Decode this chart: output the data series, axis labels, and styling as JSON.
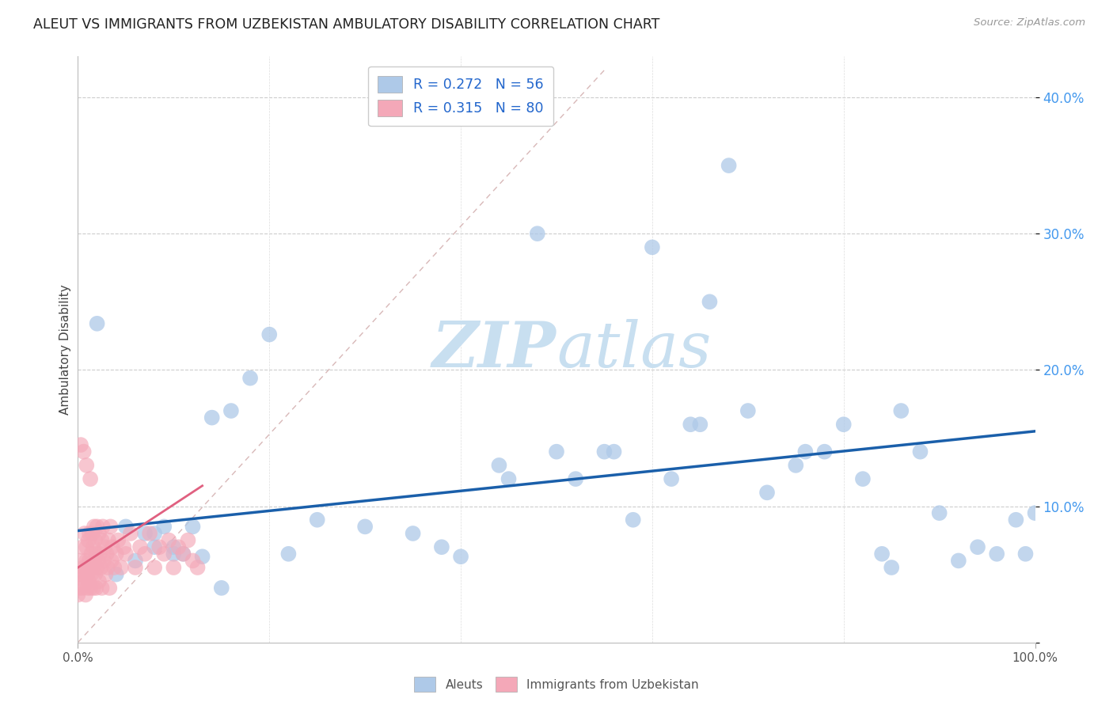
{
  "title": "ALEUT VS IMMIGRANTS FROM UZBEKISTAN AMBULATORY DISABILITY CORRELATION CHART",
  "source": "Source: ZipAtlas.com",
  "ylabel": "Ambulatory Disability",
  "yticks": [
    0.0,
    0.1,
    0.2,
    0.3,
    0.4
  ],
  "ytick_labels": [
    "",
    "10.0%",
    "20.0%",
    "30.0%",
    "40.0%"
  ],
  "xlim": [
    0.0,
    1.0
  ],
  "ylim": [
    0.0,
    0.43
  ],
  "legend_r1": "R = 0.272",
  "legend_n1": "N = 56",
  "legend_r2": "R = 0.315",
  "legend_n2": "N = 80",
  "aleuts_color": "#aec9e8",
  "uzbekistan_color": "#f4a8b8",
  "trend_blue_color": "#1a5faa",
  "trend_pink_color": "#e06080",
  "diag_color": "#ddaaaa",
  "watermark_color": "#c8dff0",
  "aleuts_x": [
    0.02,
    0.05,
    0.07,
    0.08,
    0.09,
    0.1,
    0.11,
    0.12,
    0.14,
    0.15,
    0.18,
    0.2,
    0.22,
    0.25,
    0.3,
    0.35,
    0.38,
    0.4,
    0.44,
    0.45,
    0.48,
    0.5,
    0.52,
    0.55,
    0.56,
    0.58,
    0.6,
    0.62,
    0.64,
    0.65,
    0.66,
    0.68,
    0.7,
    0.72,
    0.75,
    0.76,
    0.78,
    0.8,
    0.82,
    0.84,
    0.85,
    0.86,
    0.88,
    0.9,
    0.92,
    0.94,
    0.96,
    0.98,
    0.99,
    1.0,
    0.04,
    0.06,
    0.08,
    0.1,
    0.13,
    0.16
  ],
  "aleuts_y": [
    0.234,
    0.085,
    0.08,
    0.07,
    0.085,
    0.065,
    0.065,
    0.085,
    0.165,
    0.04,
    0.194,
    0.226,
    0.065,
    0.09,
    0.085,
    0.08,
    0.07,
    0.063,
    0.13,
    0.12,
    0.3,
    0.14,
    0.12,
    0.14,
    0.14,
    0.09,
    0.29,
    0.12,
    0.16,
    0.16,
    0.25,
    0.35,
    0.17,
    0.11,
    0.13,
    0.14,
    0.14,
    0.16,
    0.12,
    0.065,
    0.055,
    0.17,
    0.14,
    0.095,
    0.06,
    0.07,
    0.065,
    0.09,
    0.065,
    0.095,
    0.05,
    0.06,
    0.08,
    0.07,
    0.063,
    0.17
  ],
  "uzbekistan_x": [
    0.0,
    0.0,
    0.002,
    0.003,
    0.004,
    0.005,
    0.005,
    0.006,
    0.007,
    0.007,
    0.008,
    0.008,
    0.009,
    0.009,
    0.01,
    0.01,
    0.01,
    0.011,
    0.011,
    0.012,
    0.012,
    0.013,
    0.013,
    0.014,
    0.014,
    0.015,
    0.015,
    0.016,
    0.016,
    0.017,
    0.017,
    0.018,
    0.018,
    0.019,
    0.019,
    0.02,
    0.02,
    0.021,
    0.022,
    0.022,
    0.023,
    0.024,
    0.025,
    0.025,
    0.026,
    0.027,
    0.028,
    0.029,
    0.03,
    0.031,
    0.032,
    0.033,
    0.034,
    0.035,
    0.036,
    0.038,
    0.04,
    0.042,
    0.045,
    0.048,
    0.05,
    0.055,
    0.06,
    0.065,
    0.07,
    0.075,
    0.08,
    0.085,
    0.09,
    0.095,
    0.1,
    0.105,
    0.11,
    0.115,
    0.12,
    0.125,
    0.003,
    0.006,
    0.009,
    0.013
  ],
  "uzbekistan_y": [
    0.05,
    0.035,
    0.04,
    0.06,
    0.05,
    0.07,
    0.04,
    0.055,
    0.045,
    0.08,
    0.05,
    0.035,
    0.06,
    0.07,
    0.04,
    0.055,
    0.05,
    0.075,
    0.045,
    0.06,
    0.08,
    0.055,
    0.04,
    0.065,
    0.05,
    0.08,
    0.055,
    0.04,
    0.07,
    0.085,
    0.06,
    0.05,
    0.075,
    0.04,
    0.065,
    0.055,
    0.085,
    0.06,
    0.08,
    0.045,
    0.065,
    0.055,
    0.075,
    0.04,
    0.085,
    0.06,
    0.07,
    0.05,
    0.065,
    0.055,
    0.075,
    0.04,
    0.085,
    0.06,
    0.07,
    0.055,
    0.065,
    0.075,
    0.055,
    0.07,
    0.065,
    0.08,
    0.055,
    0.07,
    0.065,
    0.08,
    0.055,
    0.07,
    0.065,
    0.075,
    0.055,
    0.07,
    0.065,
    0.075,
    0.06,
    0.055,
    0.145,
    0.14,
    0.13,
    0.12
  ]
}
